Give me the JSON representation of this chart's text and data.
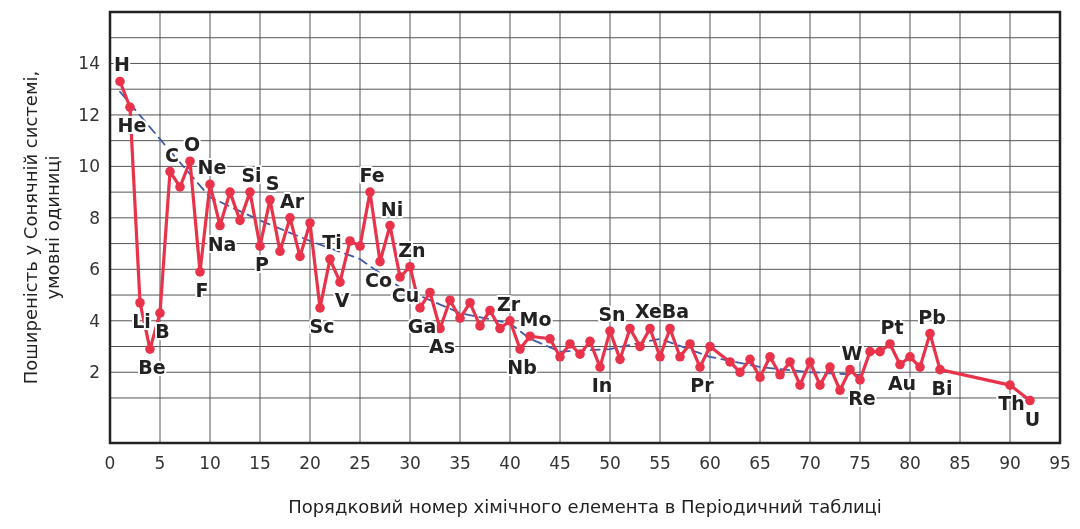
{
  "chart_data": {
    "type": "line",
    "xlabel": "Порядковий номер хімічного елемента в Періодичний таблиці",
    "ylabel": "Поширеність у Сонячній системі,\nумовні одиниці",
    "xlim": [
      0,
      95
    ],
    "xticks": [
      0,
      5,
      10,
      15,
      20,
      25,
      30,
      35,
      40,
      45,
      50,
      55,
      60,
      65,
      70,
      75,
      80,
      85,
      90,
      95
    ],
    "ylim": [
      -0.75,
      16
    ],
    "yticks": [
      {
        "value": 1,
        "label": null
      },
      2,
      {
        "value": 3,
        "label": null
      },
      4,
      {
        "value": 5,
        "label": null
      },
      6,
      {
        "value": 7,
        "label": null
      },
      8,
      {
        "value": 9,
        "label": null
      },
      10,
      {
        "value": 11,
        "label": null
      },
      12,
      {
        "value": 13,
        "label": null
      },
      14,
      {
        "value": 15,
        "label": null
      },
      {
        "value": 16,
        "label": null
      }
    ],
    "grid": true,
    "marker": "circle",
    "series": [
      {
        "color": "#3f5aa8",
        "line_style": "dashed",
        "marker": "none",
        "x": [
          1,
          6,
          10,
          15,
          20,
          25,
          29,
          35,
          40,
          42,
          45,
          50,
          55,
          60,
          65,
          70,
          75
        ],
        "values": [
          12.9,
          10.6,
          8.8,
          7.9,
          7.1,
          6.4,
          5.3,
          4.3,
          3.9,
          3.3,
          2.8,
          2.9,
          3.3,
          2.6,
          2.2,
          2.0,
          1.9
        ]
      },
      {
        "color": "#e8334a",
        "line_style": "solid",
        "x": [
          1,
          2,
          3,
          4,
          5,
          6,
          7,
          8,
          9,
          10,
          11,
          12,
          13,
          14,
          15,
          16,
          17,
          18,
          19,
          20,
          21,
          22,
          23,
          24,
          25,
          26,
          27,
          28,
          29,
          30,
          31,
          32,
          33,
          34,
          35,
          36,
          37,
          38,
          39,
          40,
          41,
          42,
          44,
          45,
          46,
          47,
          48,
          49,
          50,
          51,
          52,
          53,
          54,
          55,
          56,
          57,
          58,
          59,
          60,
          62,
          63,
          64,
          65,
          66,
          67,
          68,
          69,
          70,
          71,
          72,
          73,
          74,
          75,
          76,
          77,
          78,
          79,
          80,
          81,
          82,
          83,
          90,
          92
        ],
        "values": [
          13.3,
          12.3,
          4.7,
          2.9,
          4.3,
          9.8,
          9.2,
          10.2,
          5.9,
          9.3,
          7.7,
          9.0,
          7.9,
          9.0,
          6.9,
          8.7,
          6.7,
          8.0,
          6.5,
          7.8,
          4.5,
          6.4,
          5.5,
          7.1,
          6.9,
          9.0,
          6.3,
          7.7,
          5.7,
          6.1,
          4.5,
          5.1,
          3.7,
          4.8,
          4.1,
          4.7,
          3.8,
          4.4,
          3.7,
          4.0,
          2.9,
          3.4,
          3.3,
          2.6,
          3.1,
          2.7,
          3.2,
          2.2,
          3.6,
          2.5,
          3.7,
          3.0,
          3.7,
          2.6,
          3.7,
          2.6,
          3.1,
          2.2,
          3.0,
          2.4,
          2.0,
          2.5,
          1.8,
          2.6,
          1.9,
          2.4,
          1.5,
          2.4,
          1.5,
          2.2,
          1.3,
          2.1,
          1.7,
          2.8,
          2.8,
          3.1,
          2.3,
          2.6,
          2.2,
          3.5,
          2.1,
          1.5,
          0.9
        ]
      }
    ],
    "annotations": [
      {
        "text": "H",
        "x": 1,
        "y": 13.3
      },
      {
        "text": "He",
        "x": 2,
        "y": 12.3
      },
      {
        "text": "Li",
        "x": 3,
        "y": 4.7
      },
      {
        "text": "Be",
        "x": 4,
        "y": 2.9
      },
      {
        "text": "B",
        "x": 5,
        "y": 4.3
      },
      {
        "text": "C",
        "x": 6,
        "y": 9.8
      },
      {
        "text": "O",
        "x": 8,
        "y": 10.2
      },
      {
        "text": "F",
        "x": 9,
        "y": 5.9
      },
      {
        "text": "Ne",
        "x": 10,
        "y": 9.3
      },
      {
        "text": "Na",
        "x": 11,
        "y": 7.7
      },
      {
        "text": "Si",
        "x": 14,
        "y": 9.0
      },
      {
        "text": "P",
        "x": 15,
        "y": 6.9
      },
      {
        "text": "S",
        "x": 16,
        "y": 8.7
      },
      {
        "text": "Ar",
        "x": 18,
        "y": 8.0
      },
      {
        "text": "Sc",
        "x": 21,
        "y": 4.5
      },
      {
        "text": "Ti",
        "x": 22,
        "y": 6.4
      },
      {
        "text": "V",
        "x": 23,
        "y": 5.5
      },
      {
        "text": "Fe",
        "x": 26,
        "y": 9.0
      },
      {
        "text": "Co",
        "x": 27,
        "y": 6.3
      },
      {
        "text": "Ni",
        "x": 28,
        "y": 7.7
      },
      {
        "text": "Cu",
        "x": 29,
        "y": 5.7
      },
      {
        "text": "Zn",
        "x": 30,
        "y": 6.1
      },
      {
        "text": "Ga",
        "x": 31,
        "y": 4.5
      },
      {
        "text": "As",
        "x": 33,
        "y": 3.7
      },
      {
        "text": "Zr",
        "x": 40,
        "y": 4.0
      },
      {
        "text": "Nb",
        "x": 41,
        "y": 2.9
      },
      {
        "text": "Mo",
        "x": 42,
        "y": 3.4
      },
      {
        "text": "In",
        "x": 49,
        "y": 2.2
      },
      {
        "text": "Sn",
        "x": 50,
        "y": 3.6
      },
      {
        "text": "Xe",
        "x": 54,
        "y": 3.7
      },
      {
        "text": "Ba",
        "x": 56,
        "y": 3.7
      },
      {
        "text": "Pr",
        "x": 59,
        "y": 2.2
      },
      {
        "text": "W",
        "x": 74,
        "y": 2.1
      },
      {
        "text": "Re",
        "x": 75,
        "y": 1.7
      },
      {
        "text": "Pt",
        "x": 78,
        "y": 3.1
      },
      {
        "text": "Au",
        "x": 79,
        "y": 2.3
      },
      {
        "text": "Pb",
        "x": 82,
        "y": 3.5
      },
      {
        "text": "Bi",
        "x": 83,
        "y": 2.1
      },
      {
        "text": "Th",
        "x": 90,
        "y": 1.5
      },
      {
        "text": "U",
        "x": 92,
        "y": 0.9
      }
    ]
  }
}
